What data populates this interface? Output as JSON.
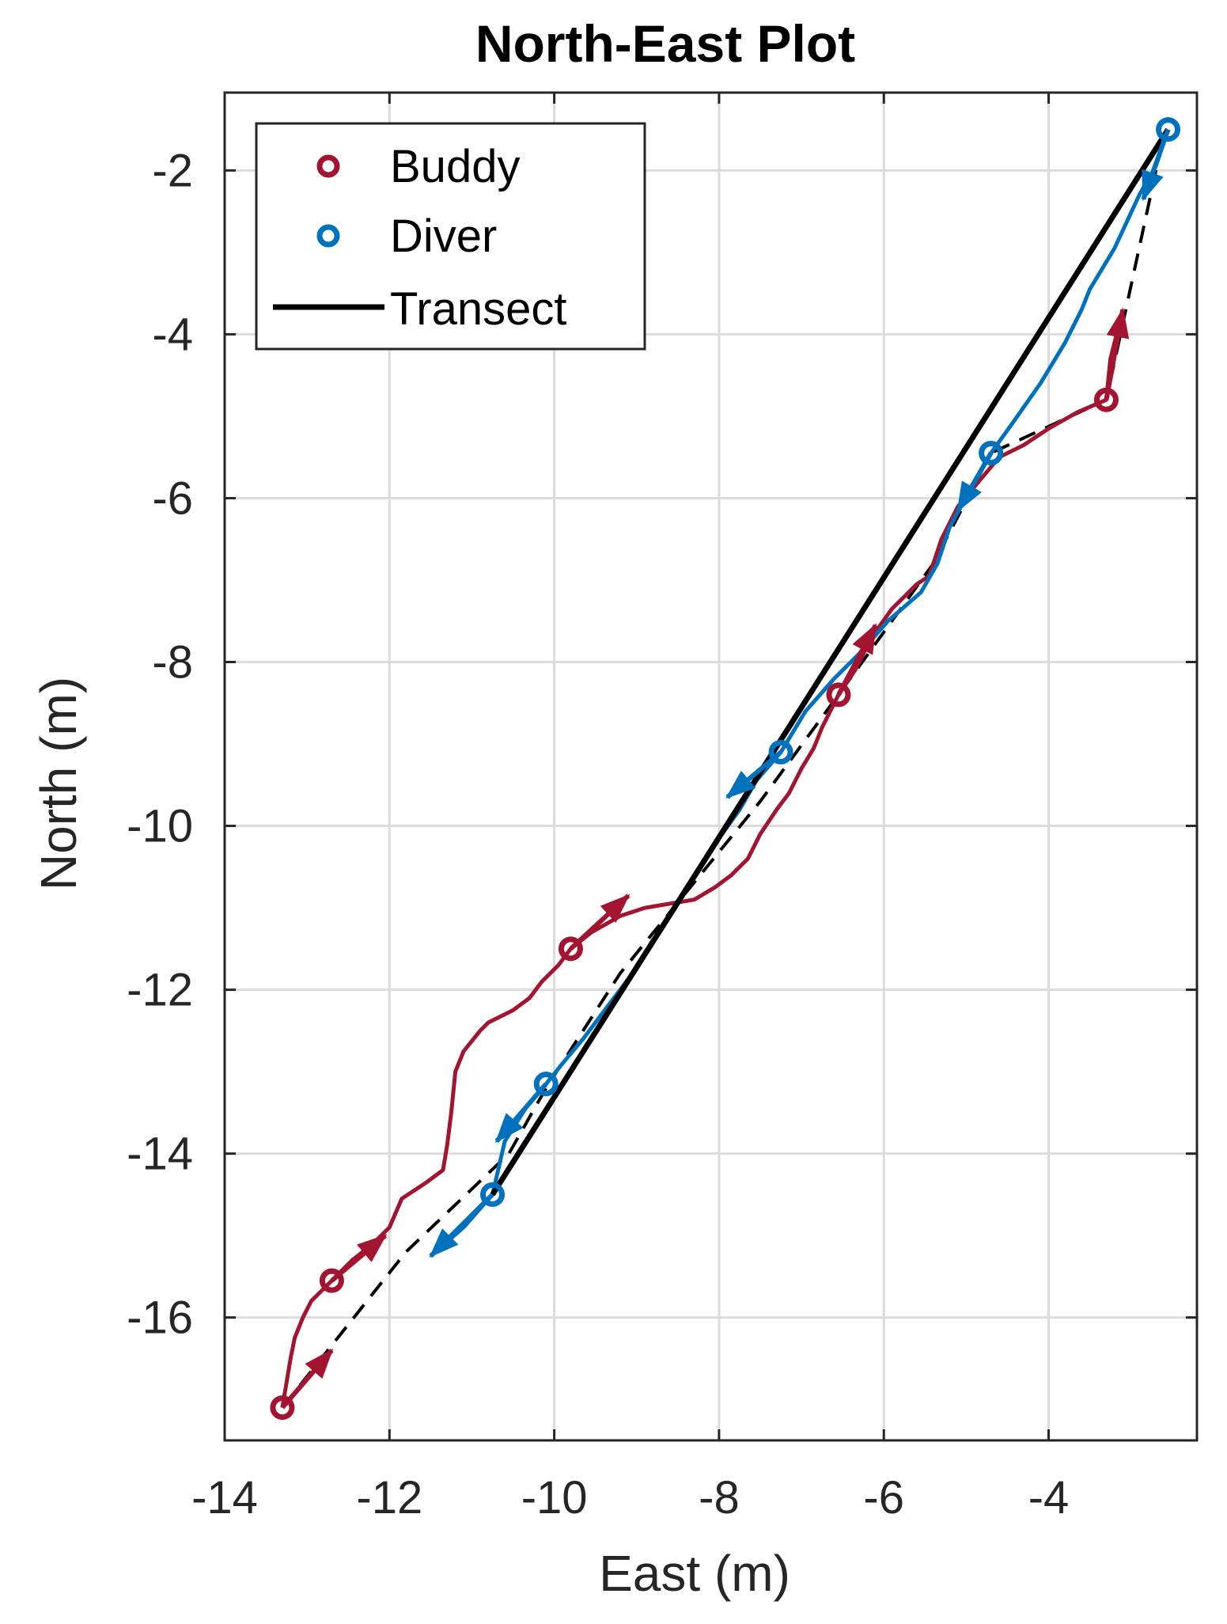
{
  "chart_data": {
    "type": "line",
    "title": "North-East Plot",
    "xlabel": "East (m)",
    "ylabel": "North (m)",
    "xlim": [
      -14,
      -2.2
    ],
    "ylim": [
      -17.5,
      -1.05
    ],
    "xticks": [
      -14,
      -12,
      -10,
      -8,
      -6,
      -4
    ],
    "yticks": [
      -16,
      -14,
      -12,
      -10,
      -8,
      -6,
      -4,
      -2
    ],
    "grid": true,
    "legend_position": "top-left",
    "legend": [
      "Buddy",
      "Diver",
      "Transect"
    ],
    "colors": {
      "buddy": "#a2142f",
      "diver": "#0072bd",
      "transect": "#000000",
      "grid": "#dbdbdb",
      "axis": "#262626"
    },
    "series": [
      {
        "name": "Transect",
        "style": "solid",
        "points": [
          [
            -10.75,
            -14.5
          ],
          [
            -2.55,
            -1.5
          ]
        ]
      },
      {
        "name": "Connector",
        "style": "dashed",
        "points": [
          [
            -13.3,
            -17.1
          ],
          [
            -11.8,
            -15.2
          ],
          [
            -10.55,
            -14.0
          ],
          [
            -10.1,
            -13.2
          ],
          [
            -9.2,
            -11.8
          ],
          [
            -7.5,
            -9.7
          ],
          [
            -6.55,
            -8.4
          ],
          [
            -5.4,
            -6.8
          ],
          [
            -4.7,
            -5.45
          ],
          [
            -3.3,
            -4.8
          ],
          [
            -2.6,
            -1.55
          ]
        ]
      },
      {
        "name": "Buddy",
        "points": [
          [
            -13.3,
            -17.1
          ],
          [
            -13.25,
            -16.8
          ],
          [
            -13.2,
            -16.5
          ],
          [
            -13.15,
            -16.25
          ],
          [
            -13.05,
            -16.0
          ],
          [
            -12.95,
            -15.8
          ],
          [
            -12.7,
            -15.55
          ],
          [
            -12.45,
            -15.3
          ],
          [
            -12.2,
            -15.1
          ],
          [
            -12.0,
            -14.9
          ],
          [
            -11.85,
            -14.55
          ],
          [
            -11.55,
            -14.35
          ],
          [
            -11.35,
            -14.2
          ],
          [
            -11.3,
            -13.9
          ],
          [
            -11.25,
            -13.5
          ],
          [
            -11.2,
            -13.0
          ],
          [
            -11.1,
            -12.75
          ],
          [
            -10.9,
            -12.5
          ],
          [
            -10.8,
            -12.4
          ],
          [
            -10.5,
            -12.25
          ],
          [
            -10.3,
            -12.1
          ],
          [
            -10.15,
            -11.9
          ],
          [
            -9.95,
            -11.7
          ],
          [
            -9.8,
            -11.5
          ],
          [
            -9.55,
            -11.3
          ],
          [
            -9.2,
            -11.1
          ],
          [
            -8.9,
            -11.0
          ],
          [
            -8.6,
            -10.95
          ],
          [
            -8.3,
            -10.9
          ],
          [
            -8.05,
            -10.75
          ],
          [
            -7.85,
            -10.6
          ],
          [
            -7.65,
            -10.4
          ],
          [
            -7.5,
            -10.1
          ],
          [
            -7.3,
            -9.8
          ],
          [
            -7.15,
            -9.6
          ],
          [
            -7.0,
            -9.3
          ],
          [
            -6.85,
            -9.05
          ],
          [
            -6.75,
            -8.8
          ],
          [
            -6.55,
            -8.4
          ],
          [
            -6.35,
            -8.1
          ],
          [
            -6.15,
            -7.7
          ],
          [
            -5.9,
            -7.35
          ],
          [
            -5.6,
            -7.05
          ],
          [
            -5.45,
            -6.95
          ],
          [
            -5.3,
            -6.5
          ],
          [
            -5.1,
            -6.1
          ],
          [
            -4.85,
            -5.8
          ],
          [
            -4.6,
            -5.5
          ],
          [
            -4.3,
            -5.35
          ],
          [
            -4.0,
            -5.15
          ],
          [
            -3.65,
            -4.95
          ],
          [
            -3.3,
            -4.8
          ],
          [
            -3.25,
            -4.3
          ],
          [
            -3.1,
            -3.7
          ]
        ]
      },
      {
        "name": "Diver",
        "points": [
          [
            -2.55,
            -1.5
          ],
          [
            -2.7,
            -1.95
          ],
          [
            -2.9,
            -2.3
          ],
          [
            -3.2,
            -2.95
          ],
          [
            -3.5,
            -3.45
          ],
          [
            -3.6,
            -3.7
          ],
          [
            -3.8,
            -4.1
          ],
          [
            -4.1,
            -4.6
          ],
          [
            -4.45,
            -5.1
          ],
          [
            -4.7,
            -5.45
          ],
          [
            -4.95,
            -5.9
          ],
          [
            -5.2,
            -6.35
          ],
          [
            -5.35,
            -6.8
          ],
          [
            -5.55,
            -7.15
          ],
          [
            -5.95,
            -7.5
          ],
          [
            -6.3,
            -7.9
          ],
          [
            -6.6,
            -8.2
          ],
          [
            -6.95,
            -8.6
          ],
          [
            -7.25,
            -9.1
          ],
          [
            -7.55,
            -9.45
          ],
          [
            -7.75,
            -9.8
          ],
          [
            -8.0,
            -10.15
          ],
          [
            -8.3,
            -10.6
          ],
          [
            -8.55,
            -11.0
          ],
          [
            -8.8,
            -11.4
          ],
          [
            -9.05,
            -11.8
          ],
          [
            -9.35,
            -12.2
          ],
          [
            -9.65,
            -12.6
          ],
          [
            -9.9,
            -12.9
          ],
          [
            -10.1,
            -13.15
          ],
          [
            -10.35,
            -13.45
          ],
          [
            -10.6,
            -13.85
          ],
          [
            -10.75,
            -14.5
          ],
          [
            -11.1,
            -14.9
          ],
          [
            -11.5,
            -15.25
          ]
        ]
      },
      {
        "name": "Buddy markers",
        "points": [
          [
            -13.3,
            -17.1
          ],
          [
            -12.7,
            -15.55
          ],
          [
            -9.8,
            -11.5
          ],
          [
            -6.55,
            -8.4
          ],
          [
            -3.3,
            -4.8
          ]
        ]
      },
      {
        "name": "Diver markers",
        "points": [
          [
            -2.55,
            -1.5
          ],
          [
            -4.7,
            -5.45
          ],
          [
            -7.25,
            -9.1
          ],
          [
            -10.1,
            -13.15
          ],
          [
            -10.75,
            -14.5
          ]
        ]
      },
      {
        "name": "Buddy arrows",
        "segments": [
          [
            [
              -13.3,
              -17.1
            ],
            [
              -12.7,
              -16.4
            ]
          ],
          [
            [
              -12.7,
              -15.55
            ],
            [
              -12.05,
              -15.0
            ]
          ],
          [
            [
              -9.8,
              -11.5
            ],
            [
              -9.1,
              -10.85
            ]
          ],
          [
            [
              -6.55,
              -8.4
            ],
            [
              -6.1,
              -7.55
            ]
          ],
          [
            [
              -3.3,
              -4.8
            ],
            [
              -3.1,
              -3.7
            ]
          ]
        ]
      },
      {
        "name": "Diver arrows",
        "segments": [
          [
            [
              -2.55,
              -1.5
            ],
            [
              -2.85,
              -2.35
            ]
          ],
          [
            [
              -4.7,
              -5.45
            ],
            [
              -5.1,
              -6.15
            ]
          ],
          [
            [
              -7.25,
              -9.1
            ],
            [
              -7.9,
              -9.65
            ]
          ],
          [
            [
              -10.1,
              -13.15
            ],
            [
              -10.7,
              -13.85
            ]
          ],
          [
            [
              -10.75,
              -14.5
            ],
            [
              -11.5,
              -15.25
            ]
          ]
        ]
      }
    ]
  }
}
